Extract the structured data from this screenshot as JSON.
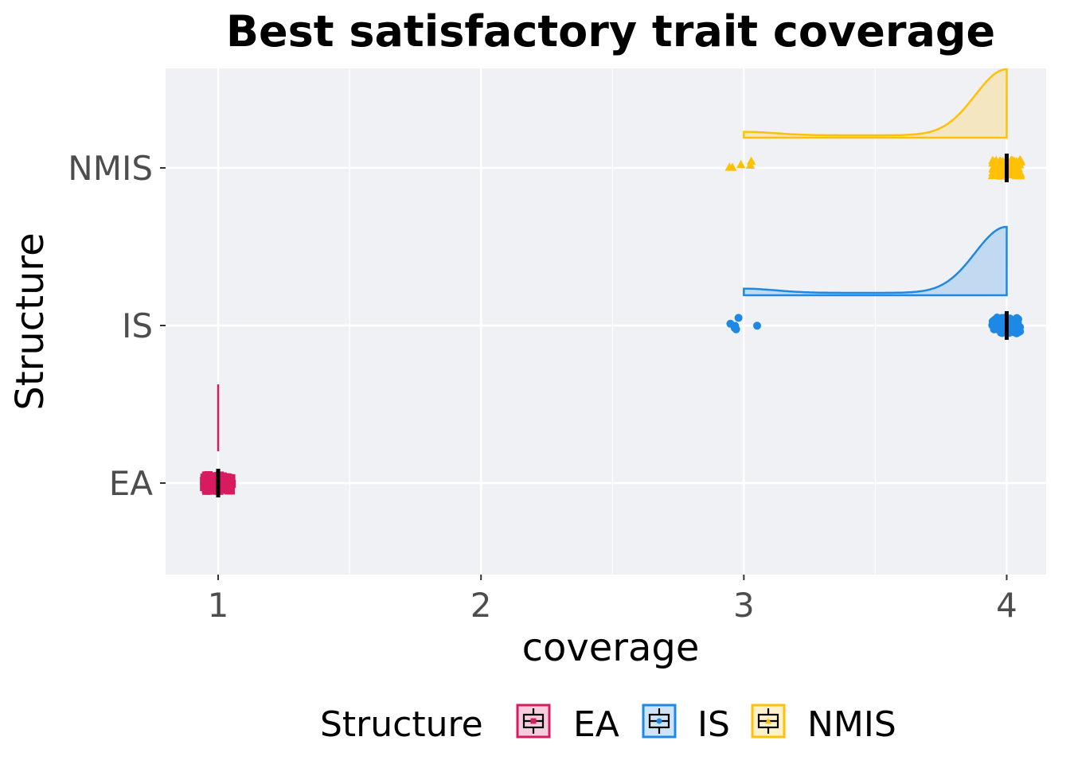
{
  "chart_data": {
    "type": "raincloud",
    "title": "Best satisfactory trait coverage",
    "xlabel": "coverage",
    "ylabel": "Structure",
    "xlim": [
      0.8,
      4.15
    ],
    "x_ticks": [
      "1",
      "2",
      "3",
      "4"
    ],
    "categories": [
      "EA",
      "IS",
      "NMIS"
    ],
    "grid": true,
    "legend": {
      "title": "Structure",
      "placement": "bottom",
      "entries": [
        "EA",
        "IS",
        "NMIS"
      ]
    },
    "series": [
      {
        "name": "EA",
        "color": "#d81b60",
        "shape": "square",
        "points": [
          {
            "x": 1,
            "count": 100
          }
        ],
        "median": 1,
        "q1": 1,
        "q3": 1
      },
      {
        "name": "IS",
        "color": "#1e88e5",
        "shape": "circle",
        "points": [
          {
            "x": 3,
            "count": 6
          },
          {
            "x": 4,
            "count": 94
          }
        ],
        "median": 4,
        "q1": 4,
        "q3": 4
      },
      {
        "name": "NMIS",
        "color": "#ffc107",
        "shape": "triangle",
        "points": [
          {
            "x": 3,
            "count": 5
          },
          {
            "x": 4,
            "count": 95
          }
        ],
        "median": 4,
        "q1": 4,
        "q3": 4
      }
    ]
  }
}
